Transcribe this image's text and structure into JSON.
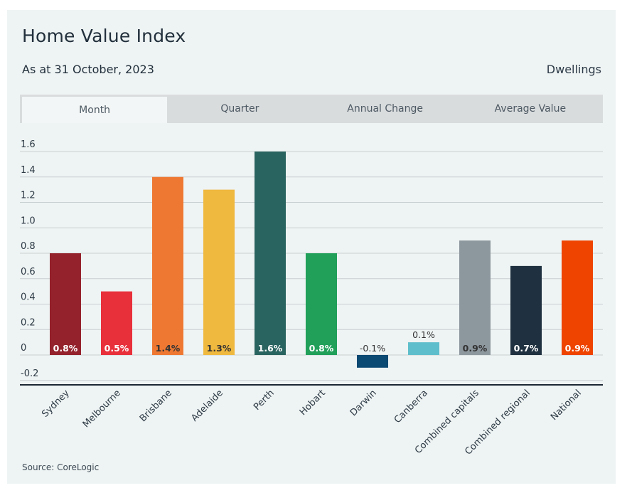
{
  "header": {
    "title": "Home Value Index",
    "subtitle": "As at 31 October, 2023",
    "category": "Dwellings"
  },
  "tabs": [
    {
      "label": "Month",
      "active": true
    },
    {
      "label": "Quarter",
      "active": false
    },
    {
      "label": "Annual Change",
      "active": false
    },
    {
      "label": "Average Value",
      "active": false
    }
  ],
  "footer": {
    "source": "Source: CoreLogic"
  },
  "chart_data": {
    "type": "bar",
    "categories": [
      "Sydney",
      "Melbourne",
      "Brisbane",
      "Adelaide",
      "Perth",
      "Hobart",
      "Darwin",
      "Canberra",
      "Combined capitals",
      "Combined regional",
      "National"
    ],
    "values": [
      0.8,
      0.5,
      1.4,
      1.3,
      1.6,
      0.8,
      -0.1,
      0.1,
      0.9,
      0.7,
      0.9
    ],
    "data_labels": [
      "0.8%",
      "0.5%",
      "1.4%",
      "1.3%",
      "1.6%",
      "0.8%",
      "-0.1%",
      "0.1%",
      "0.9%",
      "0.7%",
      "0.9%"
    ],
    "colors": [
      "#94222c",
      "#e8303b",
      "#ee7832",
      "#efb83e",
      "#2a6460",
      "#21a05a",
      "#0b4a72",
      "#5fbecb",
      "#8d979e",
      "#1f3140",
      "#ee4400"
    ],
    "label_colors": [
      "#ffffff",
      "#ffffff",
      "#333333",
      "#333333",
      "#ffffff",
      "#ffffff",
      "#333333",
      "#333333",
      "#333333",
      "#ffffff",
      "#ffffff"
    ],
    "yticks": [
      "1.6",
      "1.4",
      "1.2",
      "1.0",
      "0.8",
      "0.6",
      "0.4",
      "0.2",
      "0",
      "-0.2"
    ],
    "ytick_values": [
      1.6,
      1.4,
      1.2,
      1.0,
      0.8,
      0.6,
      0.4,
      0.2,
      0,
      -0.2
    ],
    "ylim": [
      -0.2,
      1.6
    ],
    "grid": true,
    "xlabel": "",
    "ylabel": ""
  }
}
